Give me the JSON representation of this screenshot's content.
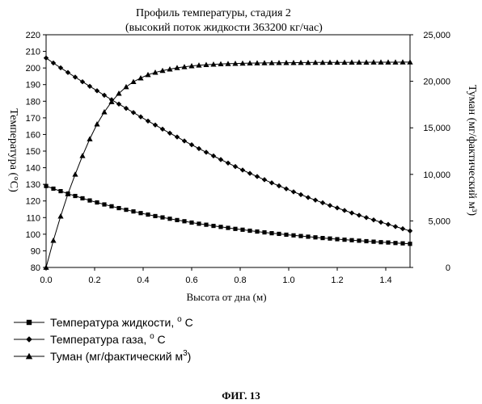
{
  "chart_data": {
    "type": "line",
    "title": "Профиль температуры, стадия 2",
    "subtitle": "(высокий поток жидкости 363200 кг/час)",
    "xlabel": "Высота от дна (м)",
    "ylabel_left": "Температура (°С)",
    "ylabel_right": "Туман (мг/фактический м³)",
    "xlim": [
      0.0,
      1.5
    ],
    "ylim_left": [
      80,
      220
    ],
    "ylim_right": [
      0,
      25000
    ],
    "x_ticks": [
      "0.0",
      "0.2",
      "0.4",
      "0.6",
      "0.8",
      "1.0",
      "1.2",
      "1.4"
    ],
    "y_left_ticks": [
      "80",
      "90",
      "100",
      "110",
      "120",
      "130",
      "140",
      "150",
      "160",
      "170",
      "180",
      "190",
      "200",
      "210",
      "220"
    ],
    "y_right_ticks": [
      "0",
      "5,000",
      "10,000",
      "15,000",
      "20,000",
      "25,000"
    ],
    "grid": false,
    "legend_position": "bottom-left",
    "series": [
      {
        "name": "Температура жидкости, °C",
        "marker": "square",
        "axis": "left",
        "x": [
          0.0,
          0.03,
          0.06,
          0.09,
          0.12,
          0.15,
          0.18,
          0.21,
          0.24,
          0.27,
          0.3,
          0.33,
          0.36,
          0.39,
          0.42,
          0.45,
          0.48,
          0.51,
          0.54,
          0.57,
          0.6,
          0.63,
          0.66,
          0.69,
          0.72,
          0.75,
          0.78,
          0.81,
          0.84,
          0.87,
          0.9,
          0.93,
          0.96,
          0.99,
          1.02,
          1.05,
          1.08,
          1.11,
          1.14,
          1.17,
          1.2,
          1.23,
          1.26,
          1.29,
          1.32,
          1.35,
          1.38,
          1.41,
          1.44,
          1.47,
          1.5
        ],
        "y": [
          129.0,
          127.4,
          125.9,
          124.4,
          123.0,
          121.6,
          120.3,
          119.1,
          117.9,
          116.8,
          115.7,
          114.7,
          113.7,
          112.7,
          111.8,
          110.9,
          110.1,
          109.3,
          108.5,
          107.8,
          107.0,
          106.3,
          105.7,
          105.0,
          104.4,
          103.8,
          103.2,
          102.7,
          102.1,
          101.6,
          101.1,
          100.6,
          100.2,
          99.7,
          99.3,
          98.9,
          98.5,
          98.1,
          97.7,
          97.4,
          97.0,
          96.7,
          96.4,
          96.1,
          95.8,
          95.5,
          95.2,
          95.0,
          94.7,
          94.5,
          94.2
        ]
      },
      {
        "name": "Температура газа, °C",
        "marker": "diamond",
        "axis": "left",
        "x": [
          0.0,
          0.03,
          0.06,
          0.09,
          0.12,
          0.15,
          0.18,
          0.21,
          0.24,
          0.27,
          0.3,
          0.33,
          0.36,
          0.39,
          0.42,
          0.45,
          0.48,
          0.51,
          0.54,
          0.57,
          0.6,
          0.63,
          0.66,
          0.69,
          0.72,
          0.75,
          0.78,
          0.81,
          0.84,
          0.87,
          0.9,
          0.93,
          0.96,
          0.99,
          1.02,
          1.05,
          1.08,
          1.11,
          1.14,
          1.17,
          1.2,
          1.23,
          1.26,
          1.29,
          1.32,
          1.35,
          1.38,
          1.41,
          1.44,
          1.47,
          1.5
        ],
        "y": [
          206.0,
          203.0,
          200.1,
          197.3,
          194.5,
          191.7,
          189.0,
          186.3,
          183.6,
          180.9,
          178.3,
          175.7,
          173.2,
          170.6,
          168.1,
          165.7,
          163.2,
          160.8,
          158.5,
          156.1,
          153.8,
          151.5,
          149.3,
          147.1,
          144.9,
          142.8,
          140.7,
          138.6,
          136.6,
          134.7,
          132.8,
          130.9,
          129.1,
          127.3,
          125.5,
          123.8,
          122.1,
          120.5,
          118.9,
          117.3,
          115.8,
          114.3,
          112.8,
          111.4,
          110.0,
          108.6,
          107.2,
          105.9,
          104.6,
          103.3,
          102.0
        ]
      },
      {
        "name": "Туман (мг/фактический м³)",
        "marker": "triangle",
        "axis": "right",
        "x": [
          0.0,
          0.03,
          0.06,
          0.09,
          0.12,
          0.15,
          0.18,
          0.21,
          0.24,
          0.27,
          0.3,
          0.33,
          0.36,
          0.39,
          0.42,
          0.45,
          0.48,
          0.51,
          0.54,
          0.57,
          0.6,
          0.63,
          0.66,
          0.69,
          0.72,
          0.75,
          0.78,
          0.81,
          0.84,
          0.87,
          0.9,
          0.93,
          0.96,
          0.99,
          1.02,
          1.05,
          1.08,
          1.11,
          1.14,
          1.17,
          1.2,
          1.23,
          1.26,
          1.29,
          1.32,
          1.35,
          1.38,
          1.41,
          1.44,
          1.47,
          1.5
        ],
        "y": [
          0,
          2900,
          5500,
          7900,
          10000,
          12000,
          13800,
          15400,
          16700,
          17800,
          18700,
          19400,
          19950,
          20350,
          20700,
          20950,
          21150,
          21300,
          21450,
          21550,
          21650,
          21720,
          21780,
          21820,
          21860,
          21890,
          21910,
          21930,
          21950,
          21960,
          21970,
          21980,
          21990,
          22000,
          22000,
          22010,
          22010,
          22020,
          22020,
          22030,
          22030,
          22030,
          22040,
          22040,
          22040,
          22050,
          22050,
          22050,
          22050,
          22060,
          22060
        ]
      }
    ],
    "legend": [
      {
        "text": "Температура  жидкости, ",
        "sup": "o",
        "suffix": " C",
        "marker": "square"
      },
      {
        "text": "Температура газа,  ",
        "sup": "o",
        "suffix": " C",
        "marker": "diamond"
      },
      {
        "text": "Туман (мг/фактический м",
        "sup": "3",
        "suffix": ")",
        "marker": "triangle"
      }
    ]
  },
  "figure_caption": "ФИГ. 13"
}
